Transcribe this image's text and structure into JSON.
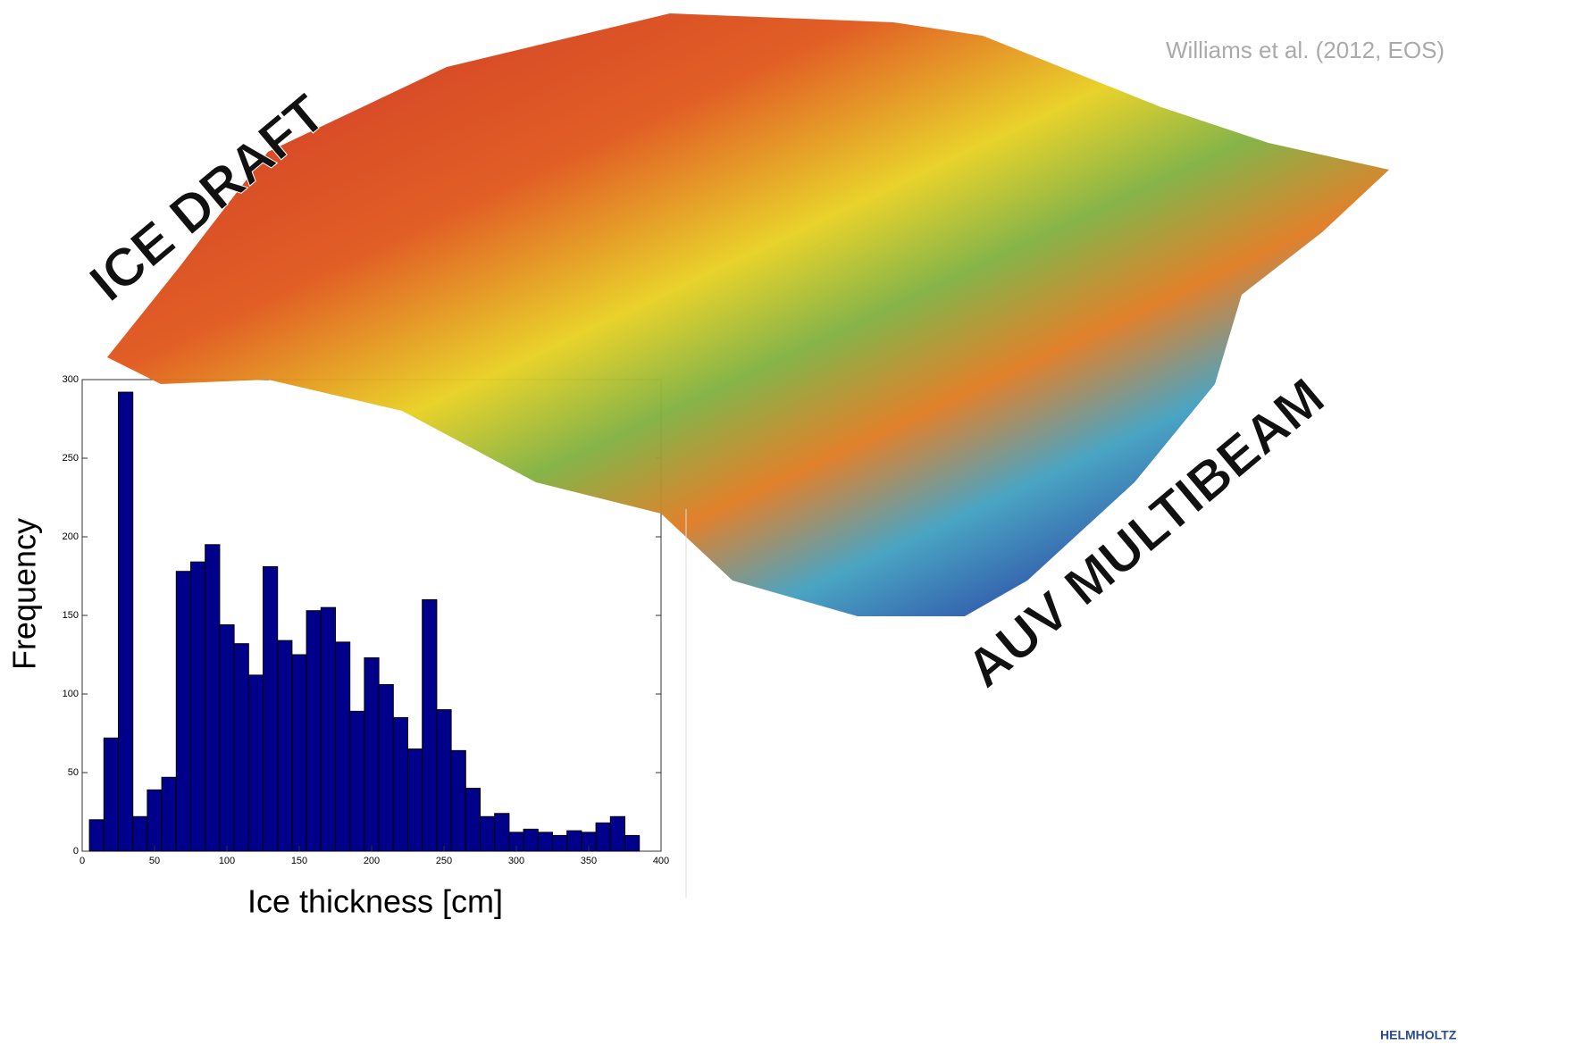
{
  "header": {
    "citation": "Williams et al. (2012, EOS)",
    "labels": [
      "ICE DRAFT",
      "AUV MULTIBEAM"
    ],
    "logo": "HELMHOLTZ"
  },
  "chart_data": {
    "type": "histogram",
    "xlabel": "Ice thickness [cm]",
    "ylabel": "Frequency",
    "color": "#00008b",
    "bins": [
      5,
      15,
      25,
      35,
      45,
      55,
      65,
      75,
      85,
      95,
      105,
      115,
      125,
      135,
      145,
      155,
      165,
      175,
      185,
      195,
      205,
      215,
      225,
      235,
      245,
      255,
      265,
      275,
      285,
      295,
      305,
      315,
      325,
      335,
      345,
      355,
      365,
      375,
      385
    ],
    "values": [
      20,
      72,
      292,
      22,
      39,
      47,
      178,
      184,
      195,
      144,
      132,
      112,
      181,
      134,
      125,
      153,
      155,
      133,
      89,
      123,
      106,
      85,
      65,
      160,
      90,
      64,
      40,
      22,
      24,
      12,
      14,
      12,
      10,
      13,
      12,
      18,
      22,
      10
    ],
    "xlim": [
      0,
      400
    ],
    "ylim": [
      0,
      300
    ],
    "xticks": [
      0,
      50,
      100,
      150,
      200,
      250,
      300,
      350,
      400
    ],
    "yticks": [
      0,
      50,
      100,
      150,
      200,
      250,
      300
    ]
  }
}
